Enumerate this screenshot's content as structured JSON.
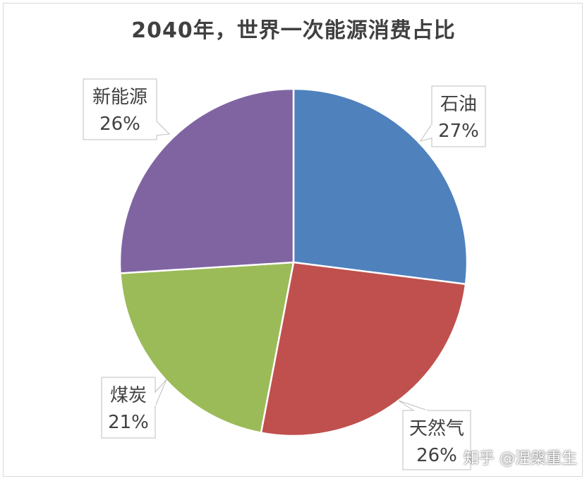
{
  "chart_data": {
    "type": "pie",
    "title": "2040年，世界一次能源消费占比",
    "categories": [
      "石油",
      "天然气",
      "煤炭",
      "新能源"
    ],
    "values": [
      27,
      26,
      21,
      26
    ],
    "value_labels": [
      "27%",
      "26%",
      "21%",
      "26%"
    ],
    "colors": [
      "#4f81bd",
      "#c0504d",
      "#9bbb59",
      "#8064a2"
    ],
    "start_angle_deg": 0,
    "direction": "clockwise",
    "legend": "none",
    "data_labels": "callouts"
  },
  "watermark": "知乎 @涅槃重生"
}
